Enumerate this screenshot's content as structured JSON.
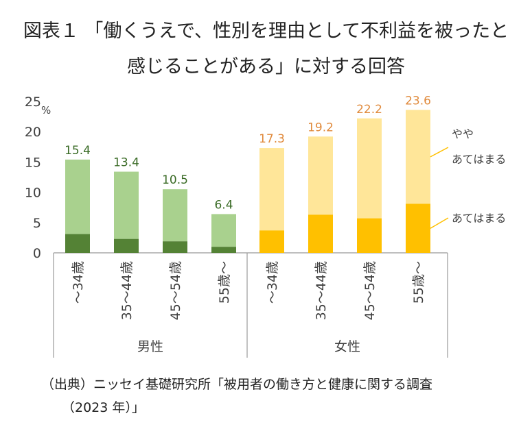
{
  "title": {
    "line1": "図表１ 「働くうえで、性別を理由として不利益を被ったと",
    "line2": "感じることがある」に対する回答"
  },
  "source": {
    "line1": "（出典）ニッセイ基礎研究所「被用者の働き方と健康に関する調査",
    "line2": "（2023 年）」"
  },
  "colors": {
    "male_light": "#a9d18e",
    "male_dark": "#548235",
    "female_light": "#ffe699",
    "female_dark": "#ffc000",
    "male_label": "#3a6b26",
    "female_label": "#e08a3c",
    "axis": "#999999",
    "text": "#404040"
  },
  "chart_data": {
    "type": "bar",
    "stacked": true,
    "unit": "%",
    "ylim": [
      0,
      25
    ],
    "yticks": [
      0,
      5,
      10,
      15,
      20,
      25
    ],
    "grid": false,
    "groups": [
      {
        "name": "男性",
        "categories": [
          "～34歳",
          "35～44歳",
          "45～54歳",
          "55歳～"
        ],
        "total": [
          15.4,
          13.4,
          10.5,
          6.4
        ],
        "total_labels": [
          "15.4",
          "13.4",
          "10.5",
          "6.4"
        ],
        "atehamaru": [
          3.1,
          2.3,
          1.9,
          1.0
        ]
      },
      {
        "name": "女性",
        "categories": [
          "～34歳",
          "35～44歳",
          "45～54歳",
          "55歳～"
        ],
        "total": [
          17.3,
          19.2,
          22.2,
          23.6
        ],
        "total_labels": [
          "17.3",
          "19.2",
          "22.2",
          "23.6"
        ],
        "atehamaru": [
          3.7,
          6.3,
          5.7,
          8.1
        ]
      }
    ],
    "series": [
      {
        "key": "atehamaru",
        "name": "あてはまる"
      },
      {
        "key": "yaya",
        "name_line1": "やや",
        "name_line2": "あてはまる"
      }
    ]
  }
}
